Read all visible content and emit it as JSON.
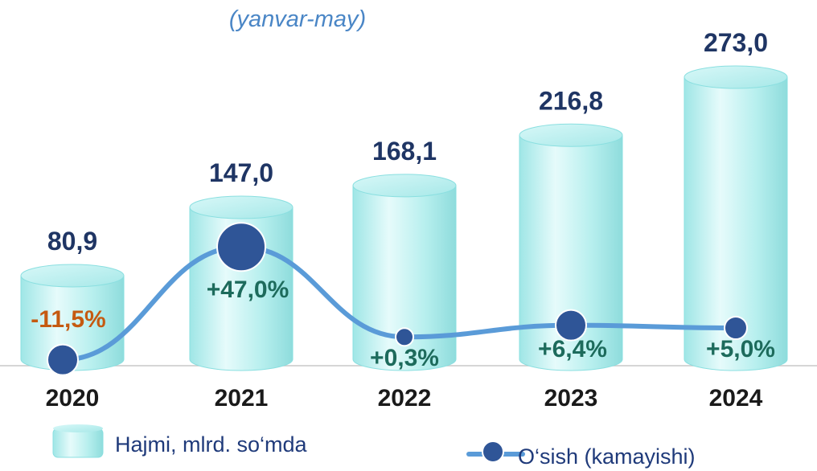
{
  "subtitle": "(yanvar-may)",
  "colors": {
    "cylinder": "#b9f0ef",
    "cylinder_edge": "#8adfe0",
    "value_label": "#1f3564",
    "year_label": "#1a1a1a",
    "line": "#5a9bd8",
    "marker": "#2f5597",
    "growth_positive": "#1d6b5c",
    "growth_negative": "#c55a11",
    "legend_text": "#1f3a7a"
  },
  "chart_data": {
    "type": "bar",
    "categories": [
      "2020",
      "2021",
      "2022",
      "2023",
      "2024"
    ],
    "series": [
      {
        "name": "Hajmi, mlrd. so‘mda",
        "values": [
          80.9,
          147.0,
          168.1,
          216.8,
          273.0
        ],
        "labels": [
          "80,9",
          "147,0",
          "168,1",
          "216,8",
          "273,0"
        ]
      },
      {
        "name": "O‘sish (kamayishi)",
        "type": "line",
        "values": [
          -11.5,
          47.0,
          0.3,
          6.4,
          5.0
        ],
        "labels": [
          "-11,5%",
          "+47,0%",
          "+0,3%",
          "+6,4%",
          "+5,0%"
        ]
      }
    ],
    "legend": {
      "position": "bottom"
    },
    "grid": false
  }
}
